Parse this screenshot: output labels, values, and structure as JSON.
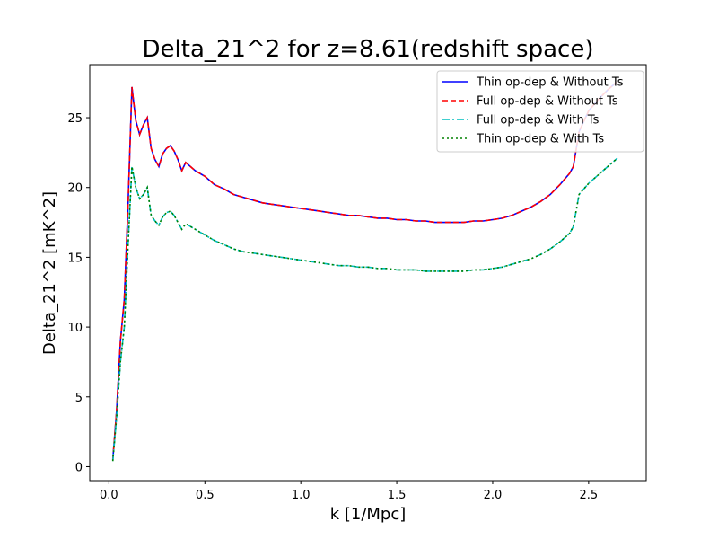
{
  "chart_data": {
    "type": "line",
    "title": "Delta_21^2 for z=8.61(redshift space)",
    "xlabel": "k [1/Mpc]",
    "ylabel": "Delta_21^2 [mK^2]",
    "xlim": [
      -0.1,
      2.8
    ],
    "ylim": [
      -1.0,
      28.8
    ],
    "xticks": [
      0.0,
      0.5,
      1.0,
      1.5,
      2.0,
      2.5
    ],
    "xtick_labels": [
      "0.0",
      "0.5",
      "1.0",
      "1.5",
      "2.0",
      "2.5"
    ],
    "yticks": [
      0,
      5,
      10,
      15,
      20,
      25
    ],
    "ytick_labels": [
      "0",
      "5",
      "10",
      "15",
      "20",
      "25"
    ],
    "grid": false,
    "legend_position": "top-right",
    "x": [
      0.02,
      0.04,
      0.06,
      0.08,
      0.1,
      0.12,
      0.14,
      0.16,
      0.18,
      0.2,
      0.22,
      0.24,
      0.26,
      0.28,
      0.3,
      0.32,
      0.34,
      0.36,
      0.38,
      0.4,
      0.45,
      0.5,
      0.55,
      0.6,
      0.65,
      0.7,
      0.75,
      0.8,
      0.85,
      0.9,
      0.95,
      1.0,
      1.05,
      1.1,
      1.15,
      1.2,
      1.25,
      1.3,
      1.35,
      1.4,
      1.45,
      1.5,
      1.55,
      1.6,
      1.65,
      1.7,
      1.75,
      1.8,
      1.85,
      1.9,
      1.95,
      2.0,
      2.05,
      2.1,
      2.15,
      2.2,
      2.25,
      2.3,
      2.35,
      2.4,
      2.42,
      2.45,
      2.5,
      2.55,
      2.6,
      2.65
    ],
    "series": [
      {
        "name": "Thin op-dep & Without Ts",
        "color": "#0000ff",
        "dash": "solid",
        "values": [
          0.5,
          4.0,
          9.0,
          12.0,
          19.0,
          27.2,
          24.8,
          23.8,
          24.5,
          25.0,
          22.8,
          22.0,
          21.5,
          22.4,
          22.8,
          23.0,
          22.6,
          22.0,
          21.2,
          21.8,
          21.2,
          20.8,
          20.2,
          19.9,
          19.5,
          19.3,
          19.1,
          18.9,
          18.8,
          18.7,
          18.6,
          18.5,
          18.4,
          18.3,
          18.2,
          18.1,
          18.0,
          18.0,
          17.9,
          17.8,
          17.8,
          17.7,
          17.7,
          17.6,
          17.6,
          17.5,
          17.5,
          17.5,
          17.5,
          17.6,
          17.6,
          17.7,
          17.8,
          18.0,
          18.3,
          18.6,
          19.0,
          19.5,
          20.2,
          21.0,
          21.5,
          24.0,
          25.5,
          26.3,
          27.0,
          27.6
        ]
      },
      {
        "name": "Full op-dep & Without Ts",
        "color": "#ff0000",
        "dash": "dashed",
        "values": [
          0.5,
          4.0,
          9.0,
          12.0,
          19.0,
          27.2,
          24.8,
          23.8,
          24.5,
          25.0,
          22.8,
          22.0,
          21.5,
          22.4,
          22.8,
          23.0,
          22.6,
          22.0,
          21.2,
          21.8,
          21.2,
          20.8,
          20.2,
          19.9,
          19.5,
          19.3,
          19.1,
          18.9,
          18.8,
          18.7,
          18.6,
          18.5,
          18.4,
          18.3,
          18.2,
          18.1,
          18.0,
          18.0,
          17.9,
          17.8,
          17.8,
          17.7,
          17.7,
          17.6,
          17.6,
          17.5,
          17.5,
          17.5,
          17.5,
          17.6,
          17.6,
          17.7,
          17.8,
          18.0,
          18.3,
          18.6,
          19.0,
          19.5,
          20.2,
          21.0,
          21.5,
          24.0,
          25.5,
          26.3,
          27.0,
          27.6
        ]
      },
      {
        "name": "Full op-dep & With Ts",
        "color": "#00bfbf",
        "dash": "dashdot",
        "values": [
          0.4,
          3.5,
          7.5,
          10.0,
          16.0,
          21.5,
          20.0,
          19.2,
          19.5,
          20.0,
          18.0,
          17.6,
          17.3,
          17.9,
          18.2,
          18.3,
          18.0,
          17.5,
          17.0,
          17.4,
          17.0,
          16.6,
          16.2,
          15.9,
          15.6,
          15.4,
          15.3,
          15.2,
          15.1,
          15.0,
          14.9,
          14.8,
          14.7,
          14.6,
          14.5,
          14.4,
          14.4,
          14.3,
          14.3,
          14.2,
          14.2,
          14.1,
          14.1,
          14.1,
          14.0,
          14.0,
          14.0,
          14.0,
          14.0,
          14.1,
          14.1,
          14.2,
          14.3,
          14.5,
          14.7,
          14.9,
          15.2,
          15.6,
          16.1,
          16.7,
          17.2,
          19.5,
          20.3,
          20.9,
          21.5,
          22.1
        ]
      },
      {
        "name": "Thin op-dep & With Ts",
        "color": "#008000",
        "dash": "dotted",
        "values": [
          0.4,
          3.5,
          7.5,
          10.0,
          16.0,
          21.5,
          20.0,
          19.2,
          19.5,
          20.0,
          18.0,
          17.6,
          17.3,
          17.9,
          18.2,
          18.3,
          18.0,
          17.5,
          17.0,
          17.4,
          17.0,
          16.6,
          16.2,
          15.9,
          15.6,
          15.4,
          15.3,
          15.2,
          15.1,
          15.0,
          14.9,
          14.8,
          14.7,
          14.6,
          14.5,
          14.4,
          14.4,
          14.3,
          14.3,
          14.2,
          14.2,
          14.1,
          14.1,
          14.1,
          14.0,
          14.0,
          14.0,
          14.0,
          14.0,
          14.1,
          14.1,
          14.2,
          14.3,
          14.5,
          14.7,
          14.9,
          15.2,
          15.6,
          16.1,
          16.7,
          17.2,
          19.5,
          20.3,
          20.9,
          21.5,
          22.1
        ]
      }
    ]
  }
}
